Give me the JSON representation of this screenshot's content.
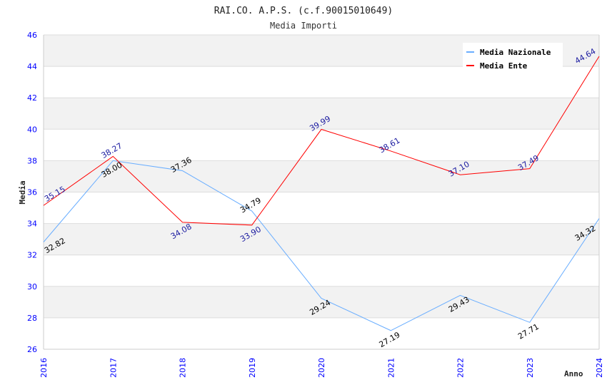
{
  "chart_data": {
    "type": "line",
    "title": "RAI.CO. A.P.S. (c.f.90015010649)",
    "subtitle": "Media Importi",
    "xlabel": "Anno",
    "ylabel": "Media",
    "ylim": [
      26,
      46
    ],
    "yticks": [
      "26",
      "28",
      "30",
      "32",
      "34",
      "36",
      "38",
      "40",
      "42",
      "44",
      "46"
    ],
    "categories": [
      "2016",
      "2017",
      "2018",
      "2019",
      "2020",
      "2021",
      "2022",
      "2023",
      "2024"
    ],
    "grid": true,
    "legend_position": "top-right",
    "series": [
      {
        "name": "Media Nazionale",
        "color": "#6aaeff",
        "label_color": "#000000",
        "values": [
          32.82,
          38.0,
          37.36,
          34.79,
          29.24,
          27.19,
          29.43,
          27.71,
          34.32
        ],
        "labels": [
          "32.82",
          "38.00",
          "37.36",
          "34.79",
          "29.24",
          "27.19",
          "29.43",
          "27.71",
          "34.32"
        ]
      },
      {
        "name": "Media Ente",
        "color": "#ff0000",
        "label_color": "#1a1aa0",
        "values": [
          35.15,
          38.27,
          34.08,
          33.9,
          39.99,
          38.61,
          37.1,
          37.49,
          44.64
        ],
        "labels": [
          "35.15",
          "38.27",
          "34.08",
          "33.90",
          "39.99",
          "38.61",
          "37.10",
          "37.49",
          "44.64"
        ]
      }
    ]
  }
}
